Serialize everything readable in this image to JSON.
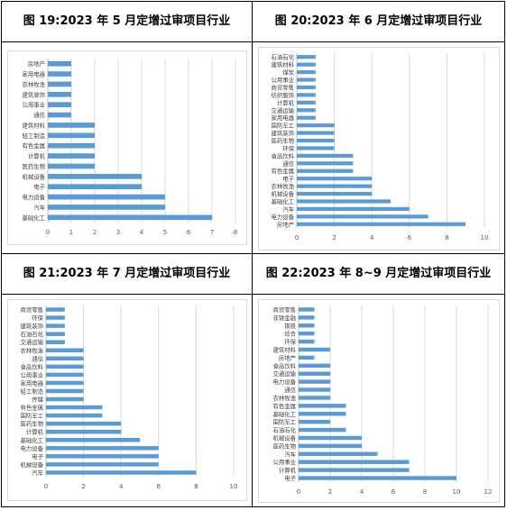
{
  "panels": [
    {
      "title": "图 19:2023 年 5 月定增过审项目行业"
    },
    {
      "title": "图 20:2023 年 6 月定增过审项目行业"
    },
    {
      "title": "图 21:2023 年 7 月定增过审项目行业"
    },
    {
      "title": "图 22:2023 年 8~9 月定增过审项目行业"
    }
  ],
  "bar_color": "#5b9bd5",
  "chart_data": [
    {
      "type": "bar",
      "orientation": "horizontal",
      "title": "图 19:2023 年 5 月定增过审项目行业",
      "categories": [
        "房地产",
        "家用电器",
        "农林牧渔",
        "建筑装饰",
        "公用事业",
        "通信",
        "建筑材料",
        "轻工制造",
        "有色金属",
        "计算机",
        "医药生物",
        "机械设备",
        "电子",
        "电力设备",
        "汽车",
        "基础化工"
      ],
      "values": [
        1,
        1,
        1,
        1,
        1,
        1,
        2,
        2,
        2,
        2,
        2,
        4,
        4,
        5,
        5,
        7
      ],
      "xlim": [
        0,
        8
      ],
      "xticks": [
        0,
        1,
        2,
        3,
        4,
        5,
        6,
        7,
        8
      ],
      "grid": true
    },
    {
      "type": "bar",
      "orientation": "horizontal",
      "title": "图 20:2023 年 6 月定增过审项目行业",
      "categories": [
        "石油石化",
        "建筑材料",
        "煤炭",
        "公用事业",
        "商贸零售",
        "纺织服饰",
        "计算机",
        "交通运输",
        "家用电器",
        "国防军工",
        "建筑装饰",
        "医药生物",
        "环保",
        "食品饮料",
        "通信",
        "有色金属",
        "电子",
        "农林牧渔",
        "机械设备",
        "基础化工",
        "汽车",
        "电力设备",
        "房地产"
      ],
      "values": [
        1,
        1,
        1,
        1,
        1,
        1,
        1,
        1,
        1,
        2,
        2,
        2,
        2,
        3,
        3,
        3,
        4,
        4,
        4,
        5,
        6,
        7,
        9
      ],
      "xlim": [
        0,
        10
      ],
      "xticks": [
        0,
        2,
        4,
        6,
        8,
        10
      ],
      "grid": true
    },
    {
      "type": "bar",
      "orientation": "horizontal",
      "title": "图 21:2023 年 7 月定增过审项目行业",
      "categories": [
        "商贸零售",
        "环保",
        "建筑装饰",
        "石油石化",
        "交通运输",
        "农林牧渔",
        "通信",
        "食品饮料",
        "公用事业",
        "家用电器",
        "轻工制造",
        "传媒",
        "有色金属",
        "国防军工",
        "医药生物",
        "计算机",
        "基础化工",
        "电力设备",
        "电子",
        "机械设备",
        "汽车"
      ],
      "values": [
        1,
        1,
        1,
        1,
        1,
        2,
        2,
        2,
        2,
        2,
        2,
        2,
        3,
        3,
        4,
        4,
        5,
        6,
        6,
        6,
        8
      ],
      "xlim": [
        0,
        10
      ],
      "xticks": [
        0,
        2,
        4,
        6,
        8,
        10
      ],
      "grid": true
    },
    {
      "type": "bar",
      "orientation": "horizontal",
      "title": "图 22:2023 年 8~9 月定增过审项目行业",
      "categories": [
        "商贸零售",
        "非银金融",
        "钢铁",
        "综合",
        "环保",
        "建筑材料",
        "房地产",
        "食品饮料",
        "交通运输",
        "电力设备",
        "通信",
        "农林牧渔",
        "有色金属",
        "基础化工",
        "国防军工",
        "石油石化",
        "机械设备",
        "医药生物",
        "汽车",
        "公用事业",
        "计算机",
        "电子"
      ],
      "values": [
        1,
        1,
        1,
        1,
        1,
        2,
        1,
        2,
        2,
        2,
        2,
        2,
        3,
        3,
        2,
        3,
        4,
        4,
        5,
        7,
        7,
        10
      ],
      "xlim": [
        0,
        12
      ],
      "xticks": [
        0,
        2,
        4,
        6,
        8,
        10,
        12
      ],
      "grid": true
    }
  ]
}
